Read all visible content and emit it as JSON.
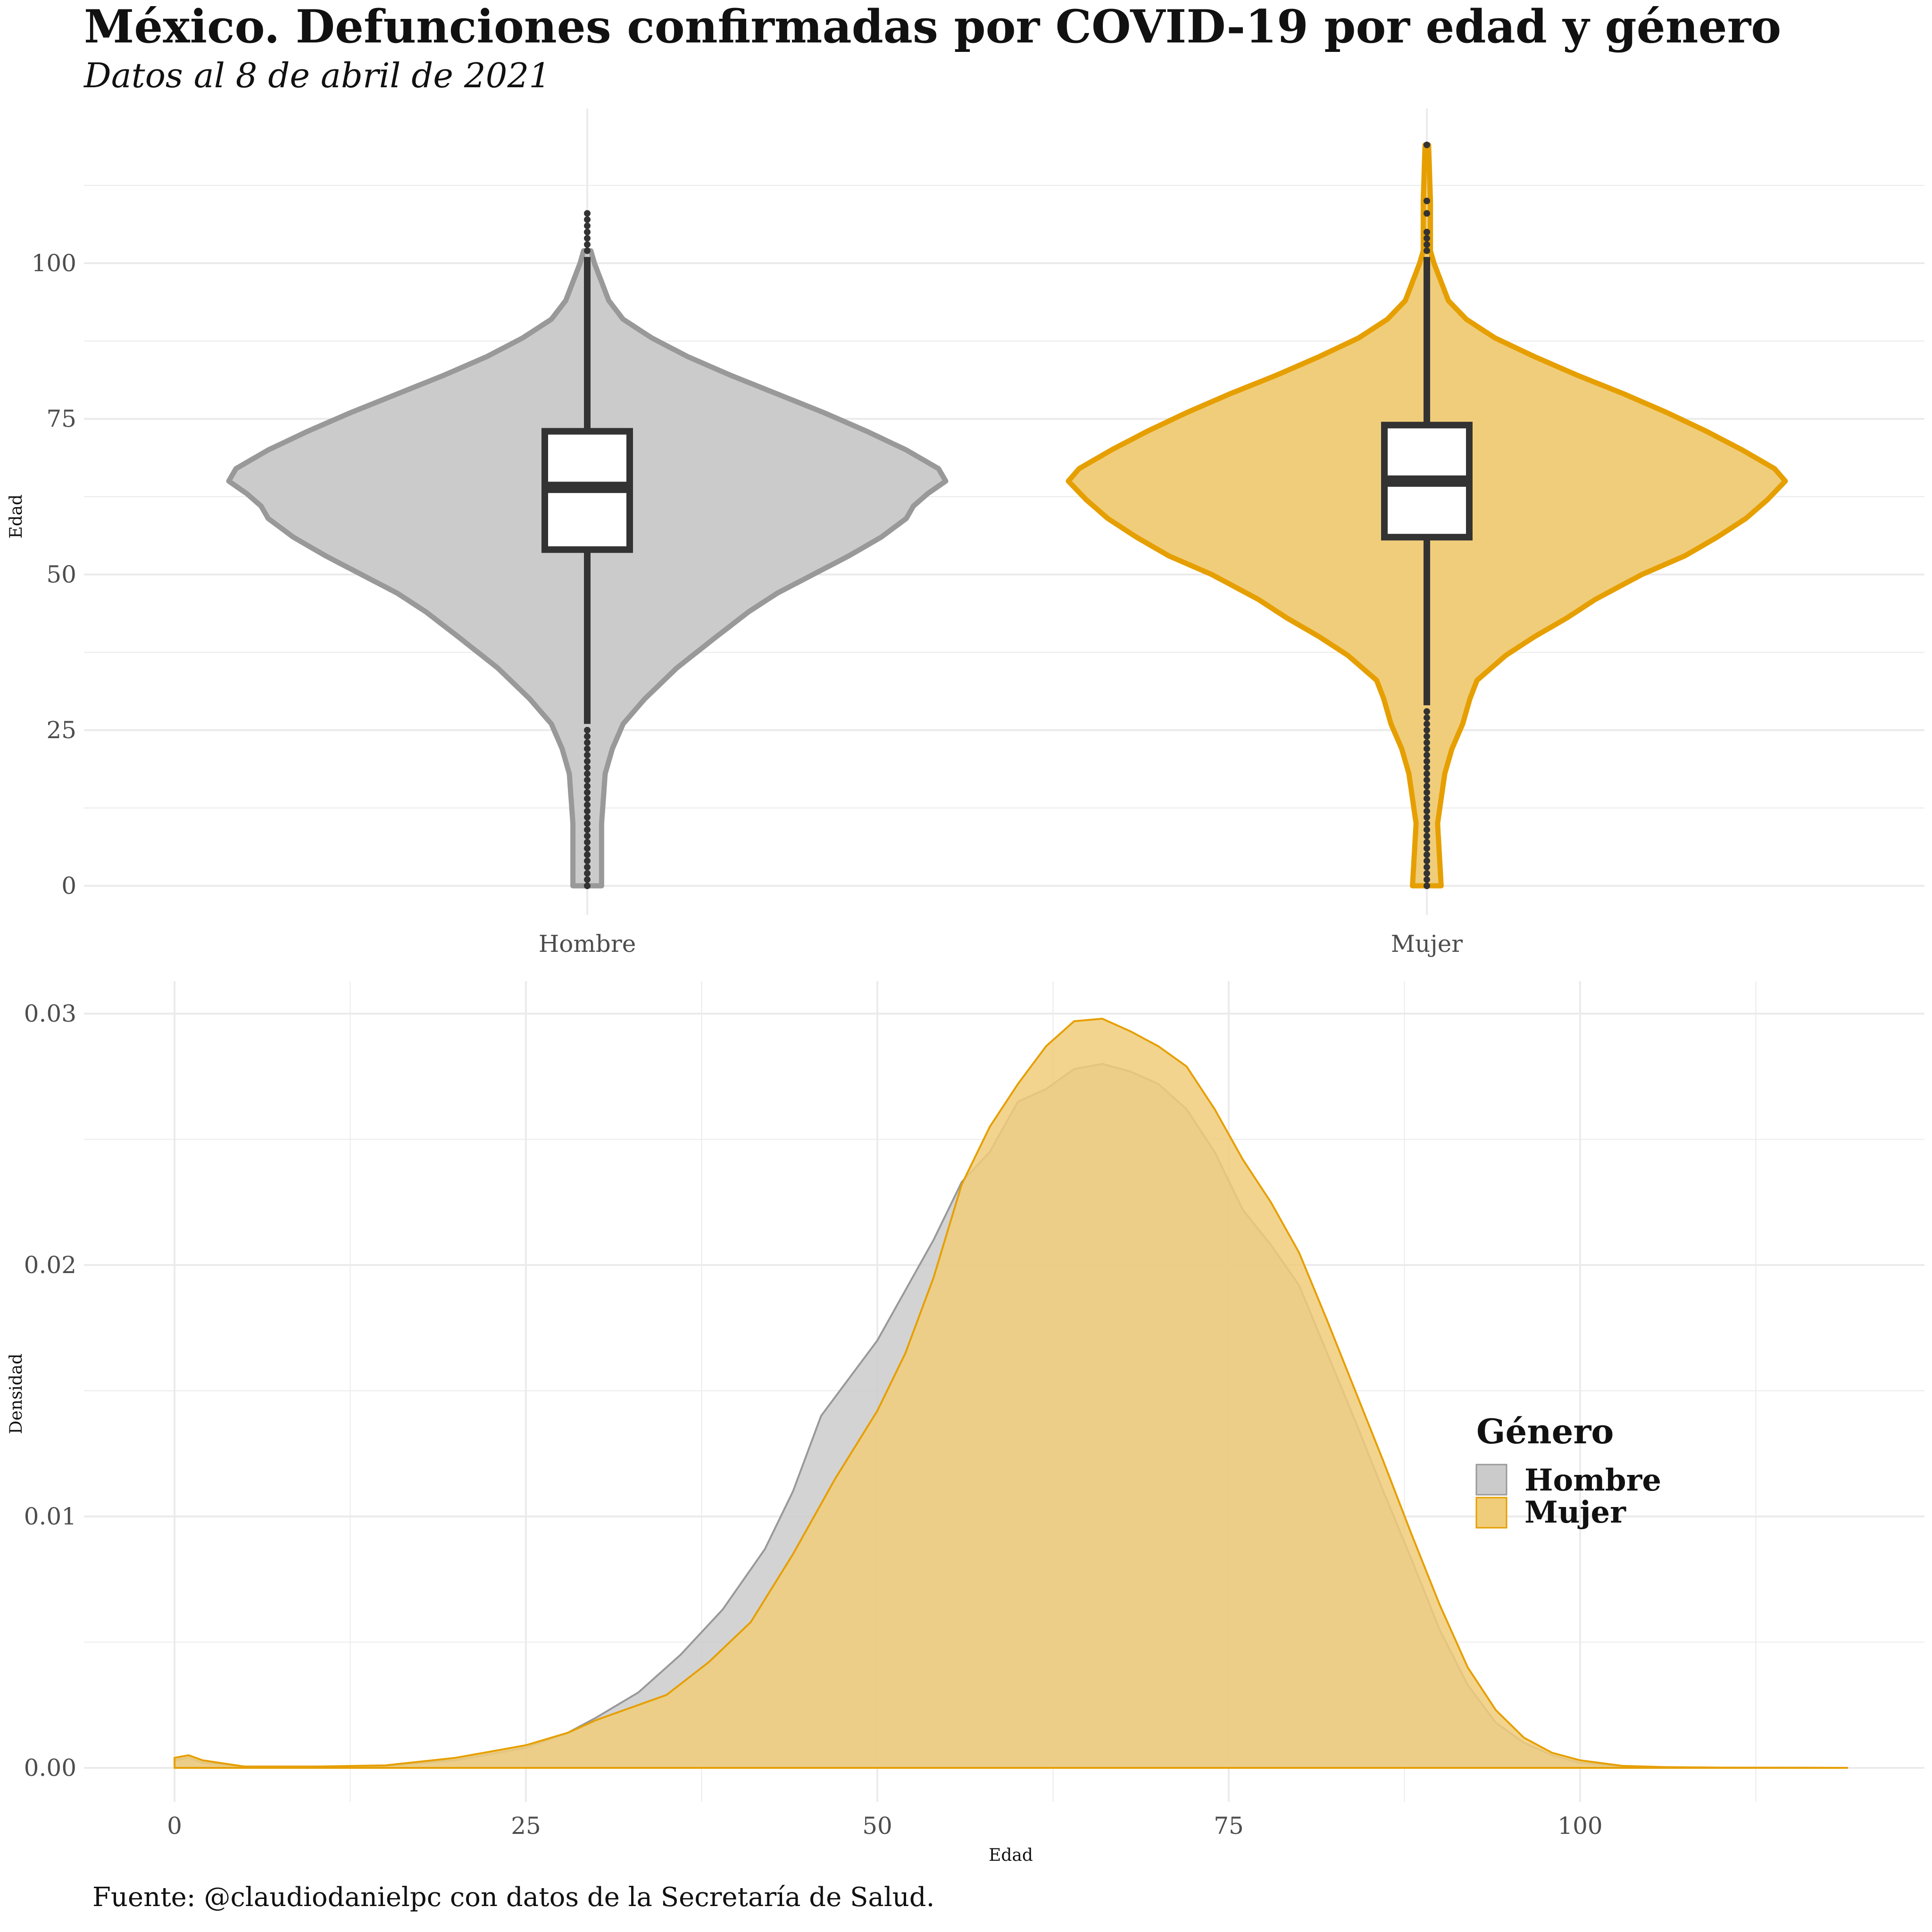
{
  "title": "México. Defunciones confirmadas por COVID-19 por edad y género",
  "subtitle": "Datos al 8 de abril de 2021",
  "caption": "Fuente: @claudiodanielpc con datos de la Secretaría de Salud.",
  "colors": {
    "hombre_fill": "#cbcbcb",
    "hombre_line": "#999999",
    "mujer_fill": "#f0cd7a",
    "mujer_line": "#e69f00",
    "box_line": "#333333",
    "grid": "#ebebeb"
  },
  "chart_data": [
    {
      "type": "violin",
      "xlabel": "",
      "ylabel": "Edad",
      "ylim": [
        0,
        118
      ],
      "yticks": [
        0,
        25,
        50,
        75,
        100
      ],
      "categories": [
        "Hombre",
        "Mujer"
      ],
      "series": [
        {
          "name": "Hombre",
          "box": {
            "min": 26,
            "q1": 54,
            "median": 64,
            "q3": 73,
            "max": 101
          },
          "outliers": [
            0,
            1,
            2,
            3,
            4,
            5,
            6,
            7,
            8,
            9,
            10,
            11,
            12,
            13,
            14,
            15,
            16,
            17,
            18,
            19,
            20,
            21,
            22,
            23,
            24,
            25,
            102,
            103,
            104,
            105,
            106,
            107,
            108
          ],
          "violin_width": [
            [
              0,
              0.04
            ],
            [
              10,
              0.04
            ],
            [
              18,
              0.05
            ],
            [
              22,
              0.07
            ],
            [
              26,
              0.1
            ],
            [
              30,
              0.16
            ],
            [
              35,
              0.25
            ],
            [
              40,
              0.36
            ],
            [
              44,
              0.45
            ],
            [
              47,
              0.53
            ],
            [
              50,
              0.63
            ],
            [
              53,
              0.73
            ],
            [
              56,
              0.82
            ],
            [
              59,
              0.89
            ],
            [
              61,
              0.91
            ],
            [
              63,
              0.95
            ],
            [
              65,
              1.0
            ],
            [
              67,
              0.98
            ],
            [
              70,
              0.89
            ],
            [
              73,
              0.78
            ],
            [
              76,
              0.66
            ],
            [
              79,
              0.53
            ],
            [
              82,
              0.4
            ],
            [
              85,
              0.28
            ],
            [
              88,
              0.18
            ],
            [
              91,
              0.1
            ],
            [
              94,
              0.06
            ],
            [
              97,
              0.04
            ],
            [
              100,
              0.02
            ],
            [
              102,
              0.01
            ]
          ]
        },
        {
          "name": "Mujer",
          "box": {
            "min": 29,
            "q1": 56,
            "median": 65,
            "q3": 74,
            "max": 101
          },
          "outliers": [
            0,
            1,
            2,
            3,
            4,
            5,
            6,
            7,
            8,
            9,
            10,
            11,
            12,
            13,
            14,
            15,
            16,
            17,
            18,
            19,
            20,
            21,
            22,
            23,
            24,
            25,
            26,
            27,
            28,
            102,
            103,
            104,
            105,
            108,
            110,
            119
          ],
          "violin_width": [
            [
              0,
              0.04
            ],
            [
              10,
              0.03
            ],
            [
              14,
              0.04
            ],
            [
              18,
              0.05
            ],
            [
              22,
              0.07
            ],
            [
              26,
              0.1
            ],
            [
              30,
              0.12
            ],
            [
              33,
              0.14
            ],
            [
              37,
              0.22
            ],
            [
              40,
              0.3
            ],
            [
              43,
              0.39
            ],
            [
              46,
              0.47
            ],
            [
              50,
              0.6
            ],
            [
              53,
              0.72
            ],
            [
              56,
              0.81
            ],
            [
              59,
              0.89
            ],
            [
              62,
              0.95
            ],
            [
              65,
              1.0
            ],
            [
              67,
              0.97
            ],
            [
              70,
              0.88
            ],
            [
              73,
              0.78
            ],
            [
              76,
              0.67
            ],
            [
              79,
              0.55
            ],
            [
              82,
              0.42
            ],
            [
              85,
              0.3
            ],
            [
              88,
              0.19
            ],
            [
              91,
              0.11
            ],
            [
              94,
              0.06
            ],
            [
              97,
              0.04
            ],
            [
              100,
              0.02
            ],
            [
              102,
              0.01
            ],
            [
              110,
              0.01
            ],
            [
              119,
              0.005
            ]
          ]
        }
      ]
    },
    {
      "type": "area",
      "xlabel": "Edad",
      "ylabel": "Densidad",
      "xlim": [
        0,
        119
      ],
      "ylim": [
        0,
        0.03
      ],
      "xticks": [
        0,
        25,
        50,
        75,
        100
      ],
      "yticks": [
        0.0,
        0.01,
        0.02,
        0.03
      ],
      "ytick_labels": [
        "0.00",
        "0.01",
        "0.02",
        "0.03"
      ],
      "legend": {
        "title": "Género",
        "entries": [
          "Hombre",
          "Mujer"
        ],
        "position": "right"
      },
      "series": [
        {
          "name": "Hombre",
          "points": [
            [
              0,
              0.0003
            ],
            [
              1,
              0.0004
            ],
            [
              2,
              0.0002
            ],
            [
              5,
              5e-05
            ],
            [
              10,
              5e-05
            ],
            [
              15,
              8e-05
            ],
            [
              20,
              0.0003
            ],
            [
              25,
              0.0008
            ],
            [
              28,
              0.0014
            ],
            [
              30,
              0.002
            ],
            [
              33,
              0.003
            ],
            [
              36,
              0.0045
            ],
            [
              39,
              0.0063
            ],
            [
              42,
              0.0087
            ],
            [
              44,
              0.011
            ],
            [
              46,
              0.014
            ],
            [
              48,
              0.0155
            ],
            [
              50,
              0.017
            ],
            [
              52,
              0.019
            ],
            [
              54,
              0.021
            ],
            [
              56,
              0.0233
            ],
            [
              58,
              0.0245
            ],
            [
              60,
              0.0265
            ],
            [
              62,
              0.027
            ],
            [
              64,
              0.0278
            ],
            [
              66,
              0.028
            ],
            [
              68,
              0.0277
            ],
            [
              70,
              0.0272
            ],
            [
              72,
              0.0262
            ],
            [
              74,
              0.0245
            ],
            [
              76,
              0.0222
            ],
            [
              78,
              0.0208
            ],
            [
              80,
              0.0192
            ],
            [
              82,
              0.0165
            ],
            [
              84,
              0.0138
            ],
            [
              86,
              0.011
            ],
            [
              88,
              0.0083
            ],
            [
              90,
              0.0055
            ],
            [
              92,
              0.0033
            ],
            [
              94,
              0.0018
            ],
            [
              96,
              0.001
            ],
            [
              98,
              0.0005
            ],
            [
              100,
              0.0002
            ],
            [
              103,
              5e-05
            ],
            [
              106,
              2e-05
            ],
            [
              110,
              1e-05
            ],
            [
              119,
              0.0
            ]
          ]
        },
        {
          "name": "Mujer",
          "points": [
            [
              0,
              0.0004
            ],
            [
              1,
              0.0005
            ],
            [
              2,
              0.0003
            ],
            [
              5,
              5e-05
            ],
            [
              10,
              5e-05
            ],
            [
              15,
              0.0001
            ],
            [
              20,
              0.0004
            ],
            [
              25,
              0.0009
            ],
            [
              28,
              0.0014
            ],
            [
              30,
              0.0019
            ],
            [
              32,
              0.0023
            ],
            [
              35,
              0.0029
            ],
            [
              38,
              0.0042
            ],
            [
              41,
              0.0058
            ],
            [
              44,
              0.0085
            ],
            [
              47,
              0.0115
            ],
            [
              50,
              0.0142
            ],
            [
              52,
              0.0165
            ],
            [
              54,
              0.0195
            ],
            [
              56,
              0.0232
            ],
            [
              58,
              0.0255
            ],
            [
              60,
              0.0272
            ],
            [
              62,
              0.0287
            ],
            [
              64,
              0.0297
            ],
            [
              66,
              0.0298
            ],
            [
              68,
              0.0293
            ],
            [
              70,
              0.0287
            ],
            [
              72,
              0.0279
            ],
            [
              74,
              0.0262
            ],
            [
              76,
              0.0242
            ],
            [
              78,
              0.0225
            ],
            [
              80,
              0.0205
            ],
            [
              82,
              0.0178
            ],
            [
              84,
              0.015
            ],
            [
              86,
              0.0122
            ],
            [
              88,
              0.0093
            ],
            [
              90,
              0.0065
            ],
            [
              92,
              0.004
            ],
            [
              94,
              0.0023
            ],
            [
              96,
              0.0012
            ],
            [
              98,
              0.0006
            ],
            [
              100,
              0.0003
            ],
            [
              103,
              8e-05
            ],
            [
              106,
              3e-05
            ],
            [
              110,
              1e-05
            ],
            [
              119,
              0.0
            ]
          ]
        }
      ]
    }
  ]
}
